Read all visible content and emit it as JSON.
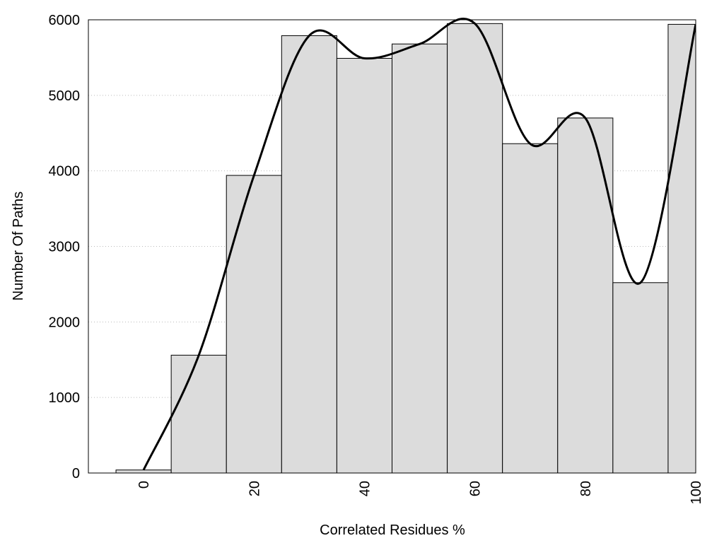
{
  "chart_data": {
    "type": "histogram",
    "x_label": "Correlated Residues %",
    "y_label": "Number Of Paths",
    "bins": [
      -5,
      5,
      15,
      25,
      35,
      45,
      55,
      65,
      75,
      85,
      95,
      105
    ],
    "values": [
      40,
      1560,
      3940,
      5790,
      5490,
      5680,
      5950,
      4360,
      4700,
      2520,
      5940
    ],
    "color": "#dcdcdc",
    "curve": {
      "x": [
        0,
        10,
        20,
        30,
        40,
        50,
        60,
        70,
        80,
        90,
        100
      ],
      "values": [
        40,
        1560,
        3940,
        5790,
        5490,
        5680,
        5950,
        4360,
        4700,
        2520,
        5940
      ],
      "color": "#000000",
      "smooth": true
    },
    "xlim": [
      -10,
      100
    ],
    "ylim": [
      0,
      6000
    ],
    "xticks": [
      0,
      20,
      40,
      60,
      80,
      100
    ],
    "yticks": [
      0,
      1000,
      2000,
      3000,
      4000,
      5000,
      6000
    ],
    "grid": true
  }
}
